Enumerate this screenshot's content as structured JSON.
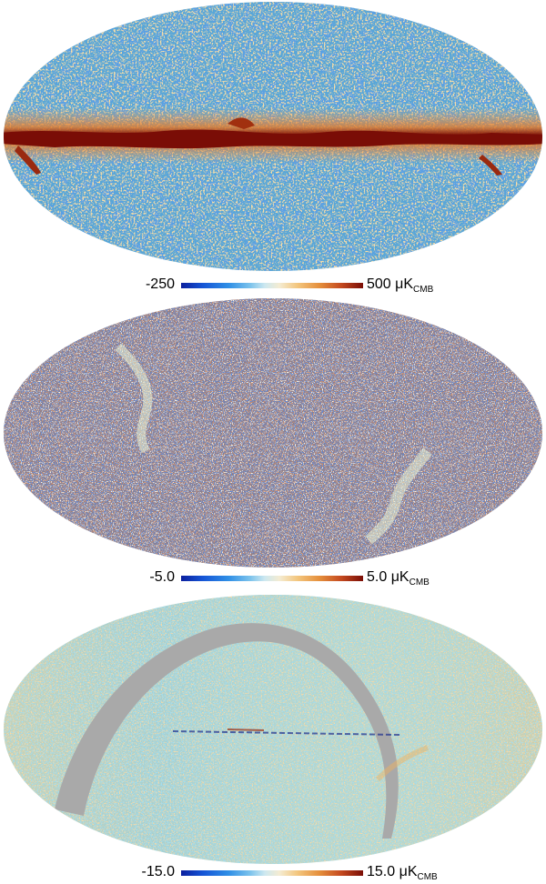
{
  "panels": [
    {
      "colorbar": {
        "min_label": "-250",
        "max_label": "500",
        "unit_prefix": "μK",
        "unit_sub": "CMB"
      },
      "colors": {
        "background": "#58a6d8",
        "speckle_low": "#1f5fc0",
        "speckle_high": "#f4c070",
        "galaxy": "#7a0d06"
      }
    },
    {
      "colorbar": {
        "min_label": "-5.0",
        "max_label": "5.0",
        "unit_prefix": "μK",
        "unit_sub": "CMB"
      },
      "colors": {
        "background": "#8a7c86",
        "speckle_low": "#1d3fae",
        "speckle_high": "#b34a24",
        "stripe": "#e9f3d6"
      }
    },
    {
      "colorbar": {
        "min_label": "-15.0",
        "max_label": "15.0",
        "unit_prefix": "μK",
        "unit_sub": "CMB"
      },
      "colors": {
        "background": "#b7d6cc",
        "speckle_low": "#5bb8dc",
        "speckle_high": "#e9b46a",
        "mask": "#a9a9a9"
      }
    }
  ]
}
